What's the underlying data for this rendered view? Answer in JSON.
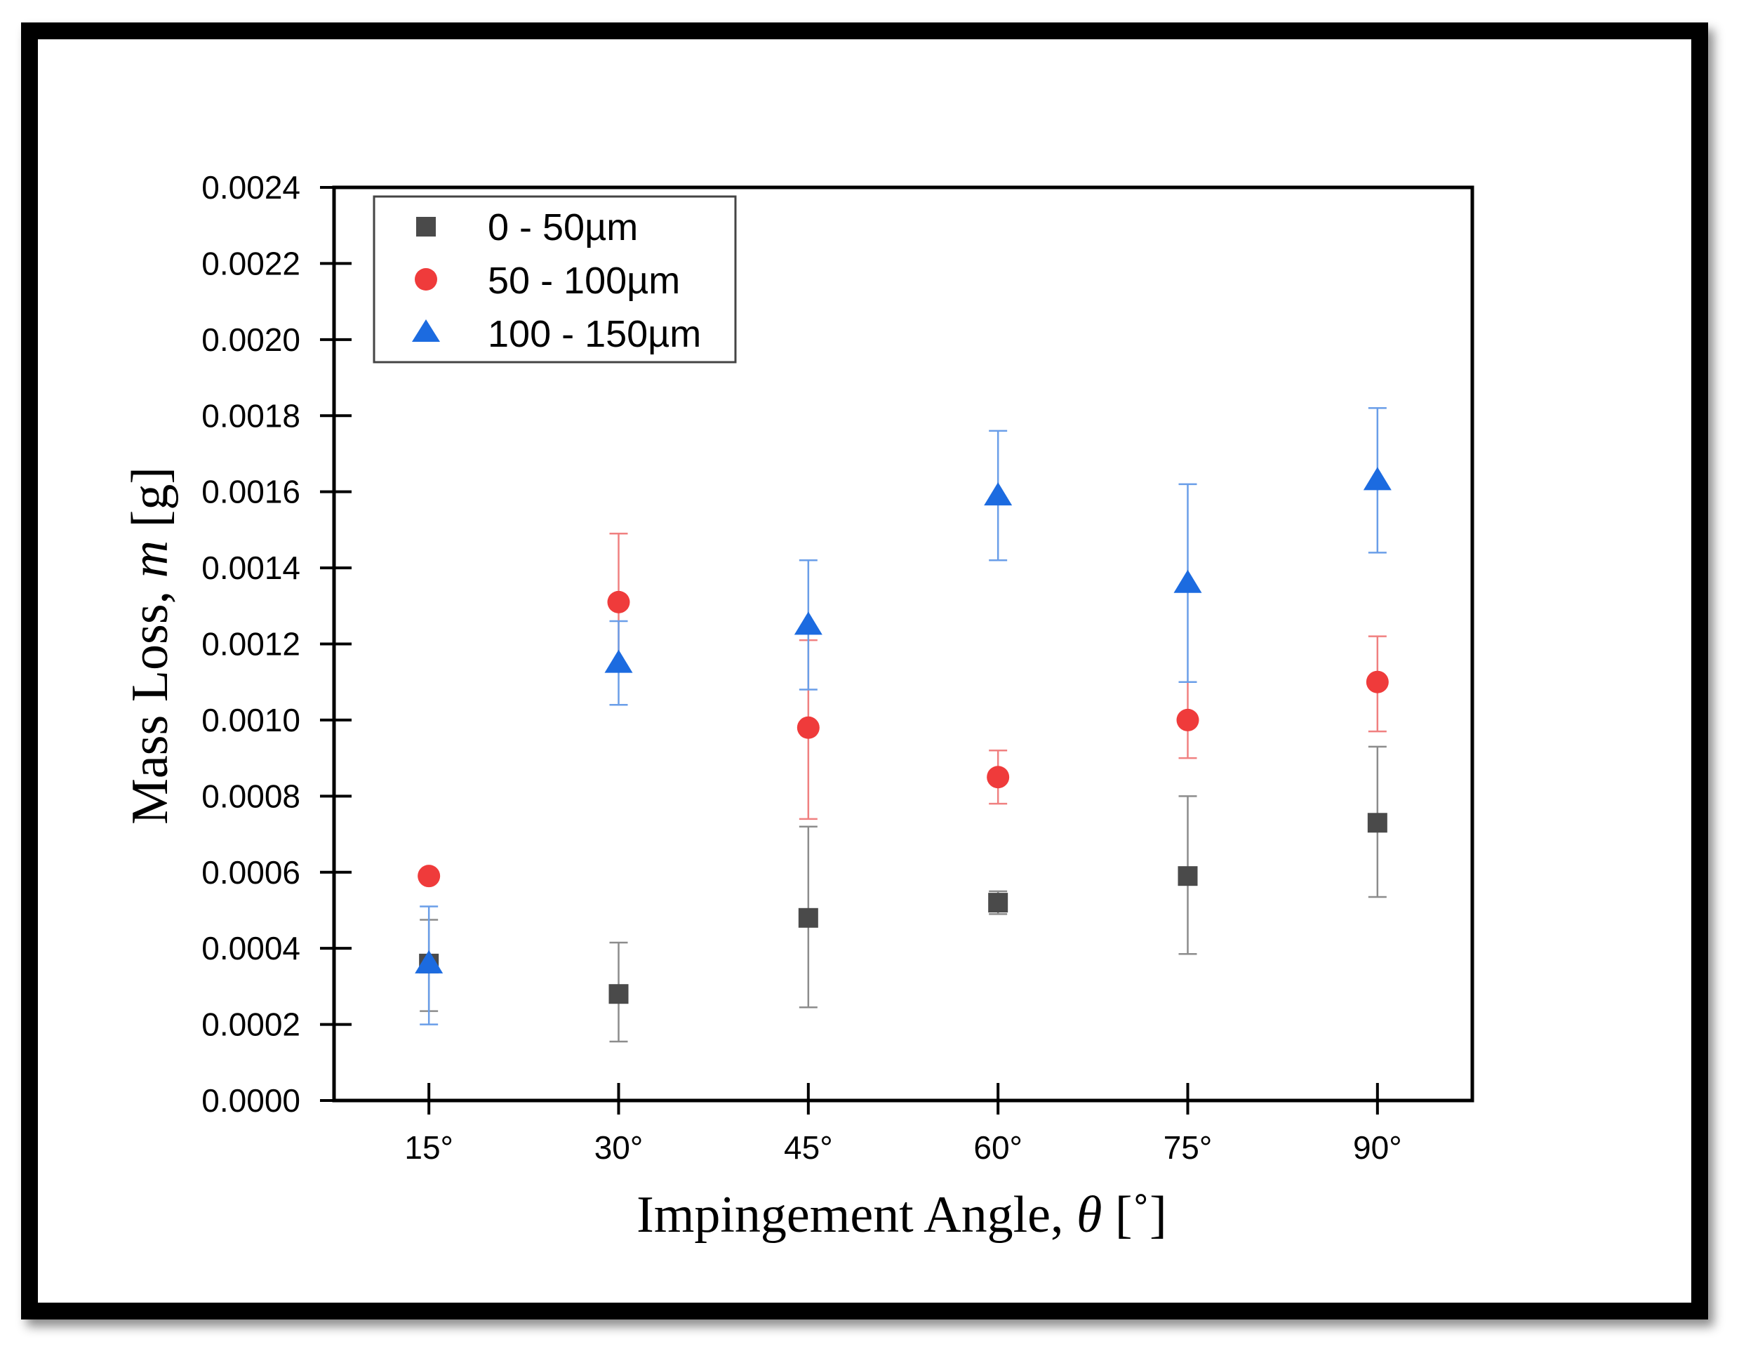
{
  "chart_data": {
    "type": "scatter",
    "xlabel_text": "Impingement Angle, ",
    "xlabel_symbol": "θ",
    "xlabel_unit": " [˚]",
    "ylabel_text": "Mass Loss, ",
    "ylabel_symbol": "m",
    "ylabel_unit": " [g]",
    "categories": [
      "15°",
      "30°",
      "45°",
      "60°",
      "75°",
      "90°"
    ],
    "x": [
      15,
      30,
      45,
      60,
      75,
      90
    ],
    "xlim": [
      7.5,
      97.5
    ],
    "ylim": [
      0,
      0.0024
    ],
    "yticks": [
      "0.0000",
      "0.0002",
      "0.0004",
      "0.0006",
      "0.0008",
      "0.0010",
      "0.0012",
      "0.0014",
      "0.0016",
      "0.0018",
      "0.0020",
      "0.0022",
      "0.0024"
    ],
    "legend_position": "top-left",
    "series": [
      {
        "name": "0 - 50µm",
        "marker": "square",
        "color": "#4a4a4a",
        "errcolor": "#8c8c8c",
        "values": [
          0.00036,
          0.00028,
          0.00048,
          0.00052,
          0.00059,
          0.00073
        ],
        "err_low": [
          0.000235,
          0.000155,
          0.000245,
          0.00049,
          0.000385,
          0.000535
        ],
        "err_high": [
          0.000475,
          0.000415,
          0.00072,
          0.00055,
          0.0008,
          0.00093
        ]
      },
      {
        "name": "50 - 100µm",
        "marker": "circle",
        "color": "#ef3b3b",
        "errcolor": "#f08080",
        "values": [
          0.00059,
          0.00131,
          0.00098,
          0.00085,
          0.001,
          0.0011
        ],
        "err_low": [
          null,
          0.00113,
          0.00074,
          0.00078,
          0.0009,
          0.00097
        ],
        "err_high": [
          null,
          0.00149,
          0.00121,
          0.00092,
          0.0011,
          0.00122
        ]
      },
      {
        "name": "100 - 150µm",
        "marker": "triangle",
        "color": "#1c6be0",
        "errcolor": "#6a9ee8",
        "values": [
          0.00036,
          0.00115,
          0.00125,
          0.00159,
          0.00136,
          0.00163
        ],
        "err_low": [
          0.0002,
          0.00104,
          0.00108,
          0.00142,
          0.0011,
          0.00144
        ],
        "err_high": [
          0.00051,
          0.00126,
          0.00142,
          0.00176,
          0.00162,
          0.00182
        ]
      }
    ]
  }
}
